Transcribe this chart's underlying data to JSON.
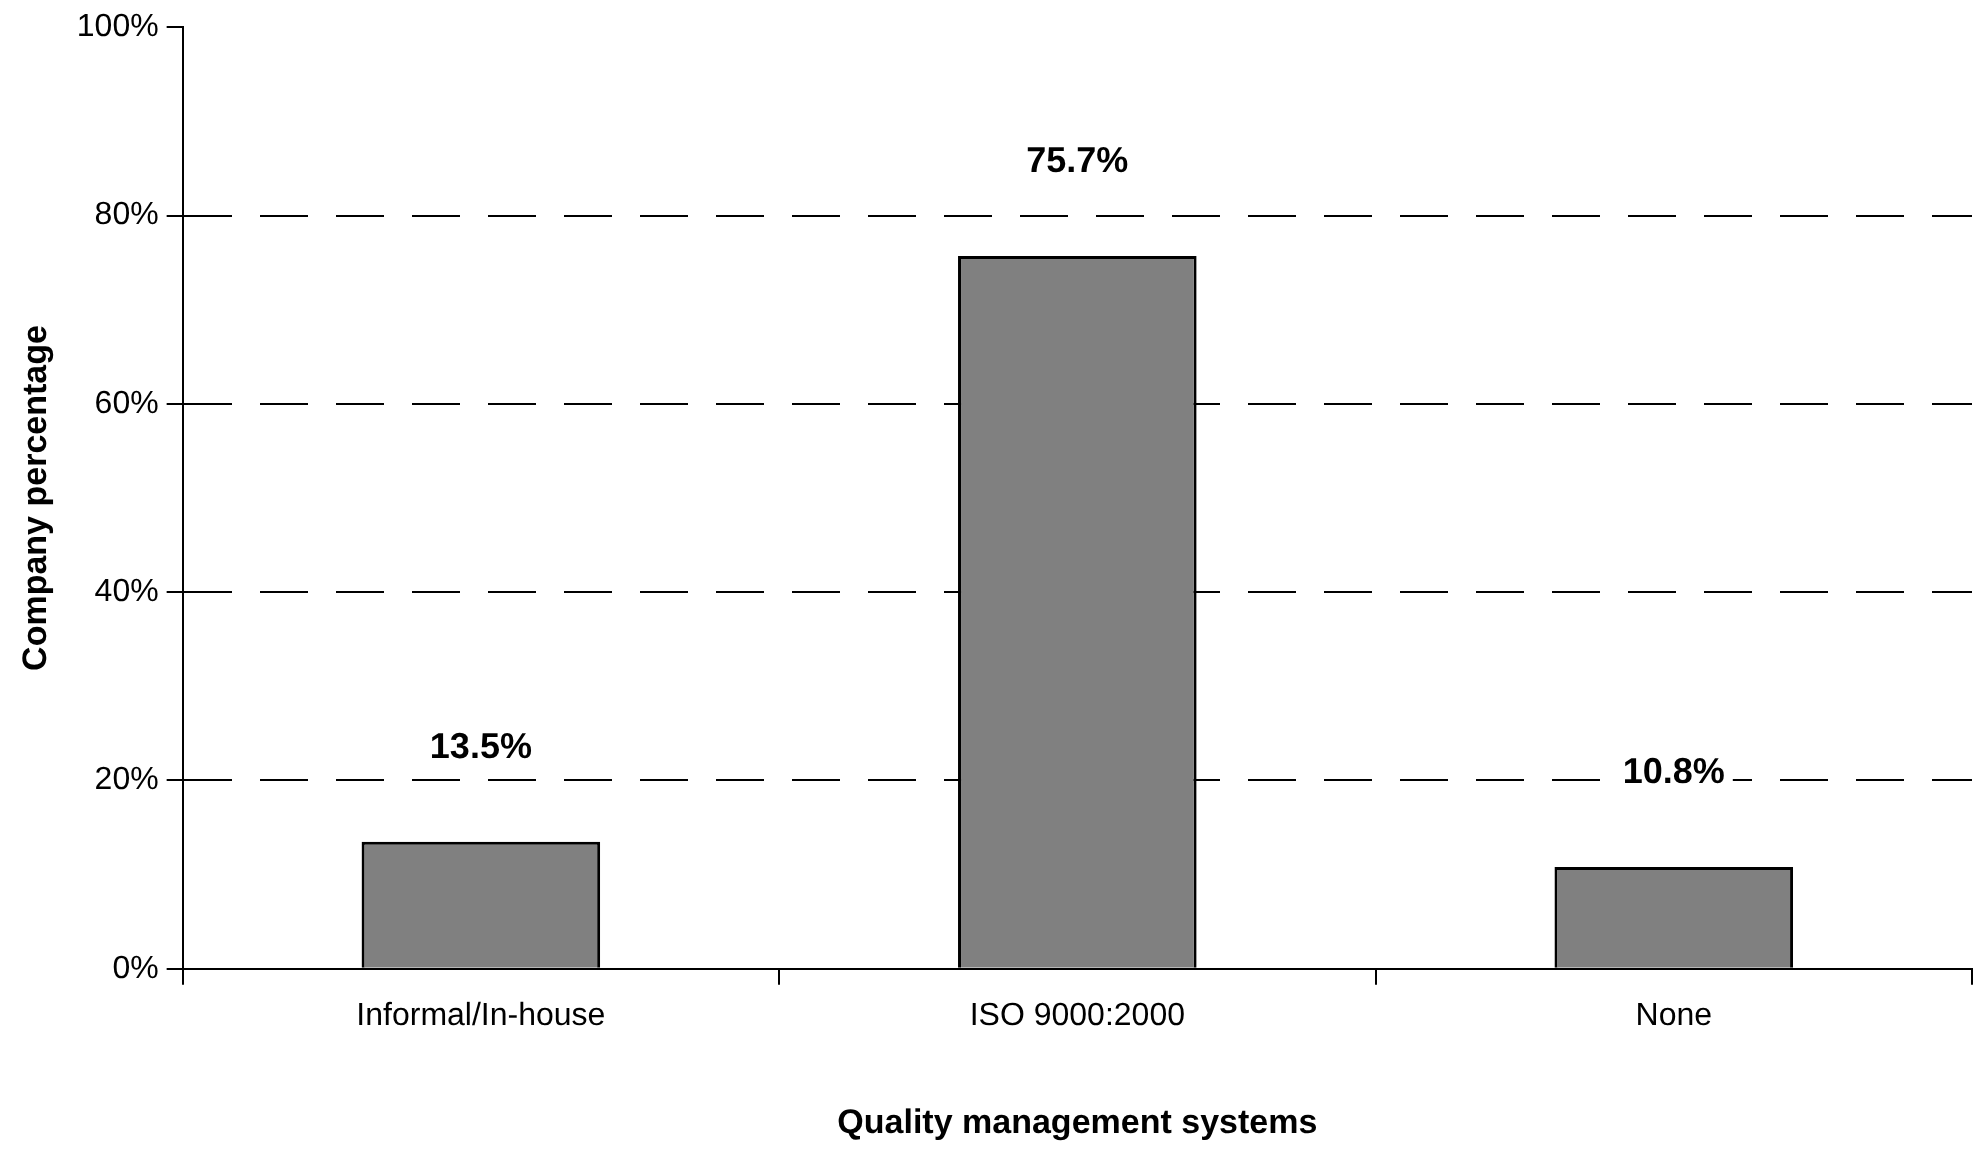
{
  "chart_data": {
    "type": "bar",
    "xlabel": "Quality management systems",
    "ylabel": "Company percentage",
    "categories": [
      "Informal/In-house",
      "ISO 9000:2000",
      "None"
    ],
    "values": [
      13.5,
      75.7,
      10.8
    ],
    "color": "#808080",
    "value_labels": [
      "13.5%",
      "75.7%",
      "10.8%"
    ],
    "ylim": [
      0,
      100
    ],
    "yticks": [
      {
        "value": 0,
        "label": "0%"
      },
      {
        "value": 20,
        "label": "20%"
      },
      {
        "value": 40,
        "label": "40%"
      },
      {
        "value": 60,
        "label": "60%"
      },
      {
        "value": 80,
        "label": "80%"
      },
      {
        "value": 100,
        "label": "100%"
      }
    ],
    "grid": "y",
    "legend": false
  }
}
